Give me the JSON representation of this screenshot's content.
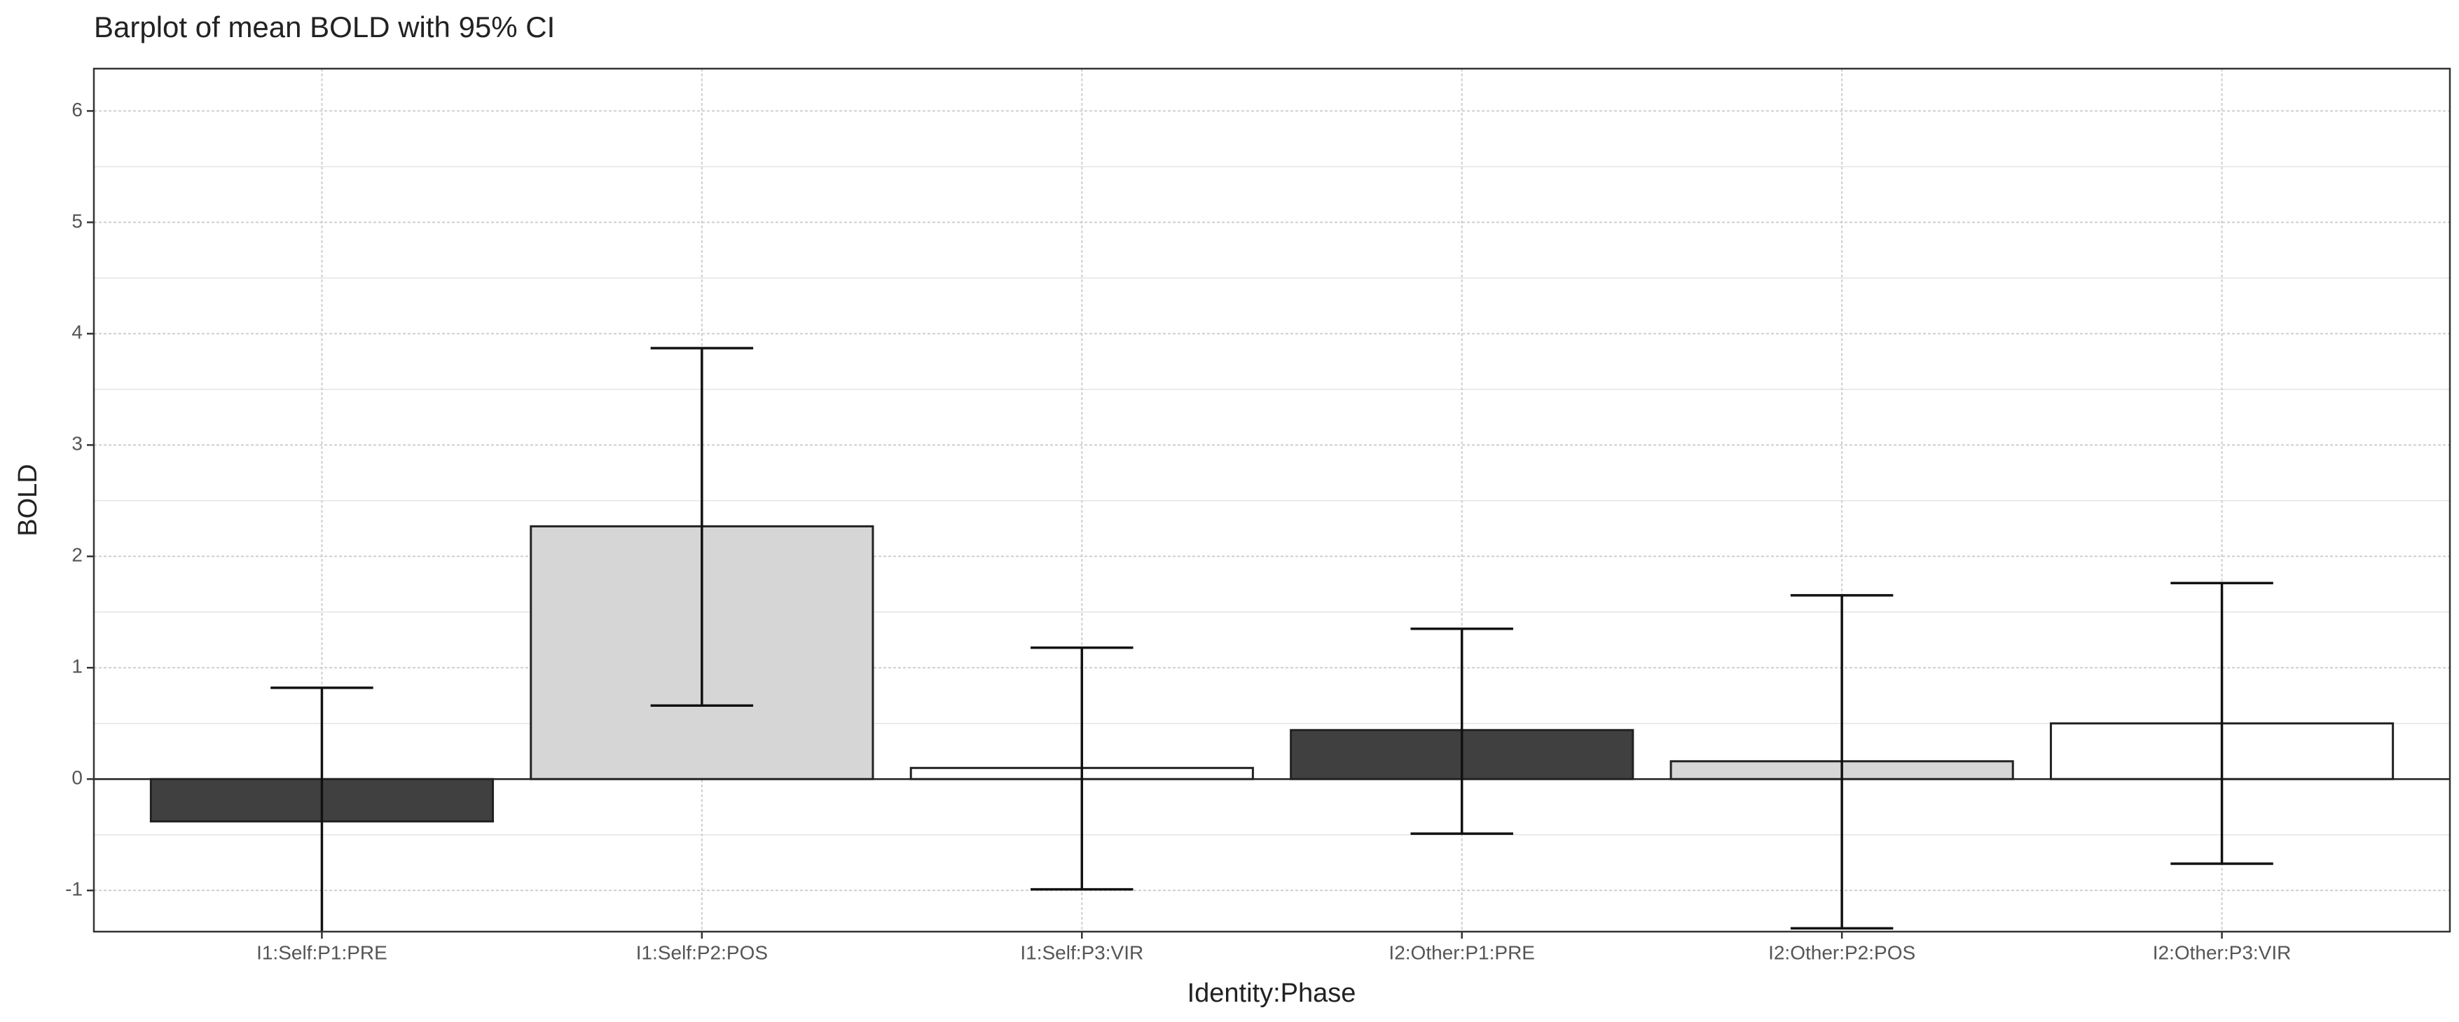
{
  "chart_data": {
    "type": "bar",
    "title": "Barplot of mean BOLD with 95% CI",
    "x_label": "Identity:Phase",
    "y_label": "BOLD",
    "categories": [
      "I1:Self:P1:PRE",
      "I1:Self:P2:POS",
      "I1:Self:P3:VIR",
      "I2:Other:P1:PRE",
      "I2:Other:P2:POS",
      "I2:Other:P3:VIR"
    ],
    "values": [
      -0.38,
      2.27,
      0.1,
      0.44,
      0.16,
      0.5
    ],
    "ci_lower": [
      -1.58,
      0.66,
      -0.99,
      -0.49,
      -1.34,
      -0.76
    ],
    "ci_upper": [
      0.82,
      3.87,
      1.18,
      1.35,
      1.65,
      1.76
    ],
    "colors": [
      "#404040",
      "#d6d6d6",
      "#ffffff",
      "#404040",
      "#d6d6d6",
      "#ffffff"
    ],
    "ylim": [
      -1.37,
      6.38
    ],
    "yticks": [
      -1,
      0,
      1,
      2,
      3,
      4,
      5,
      6
    ],
    "grid": true
  }
}
